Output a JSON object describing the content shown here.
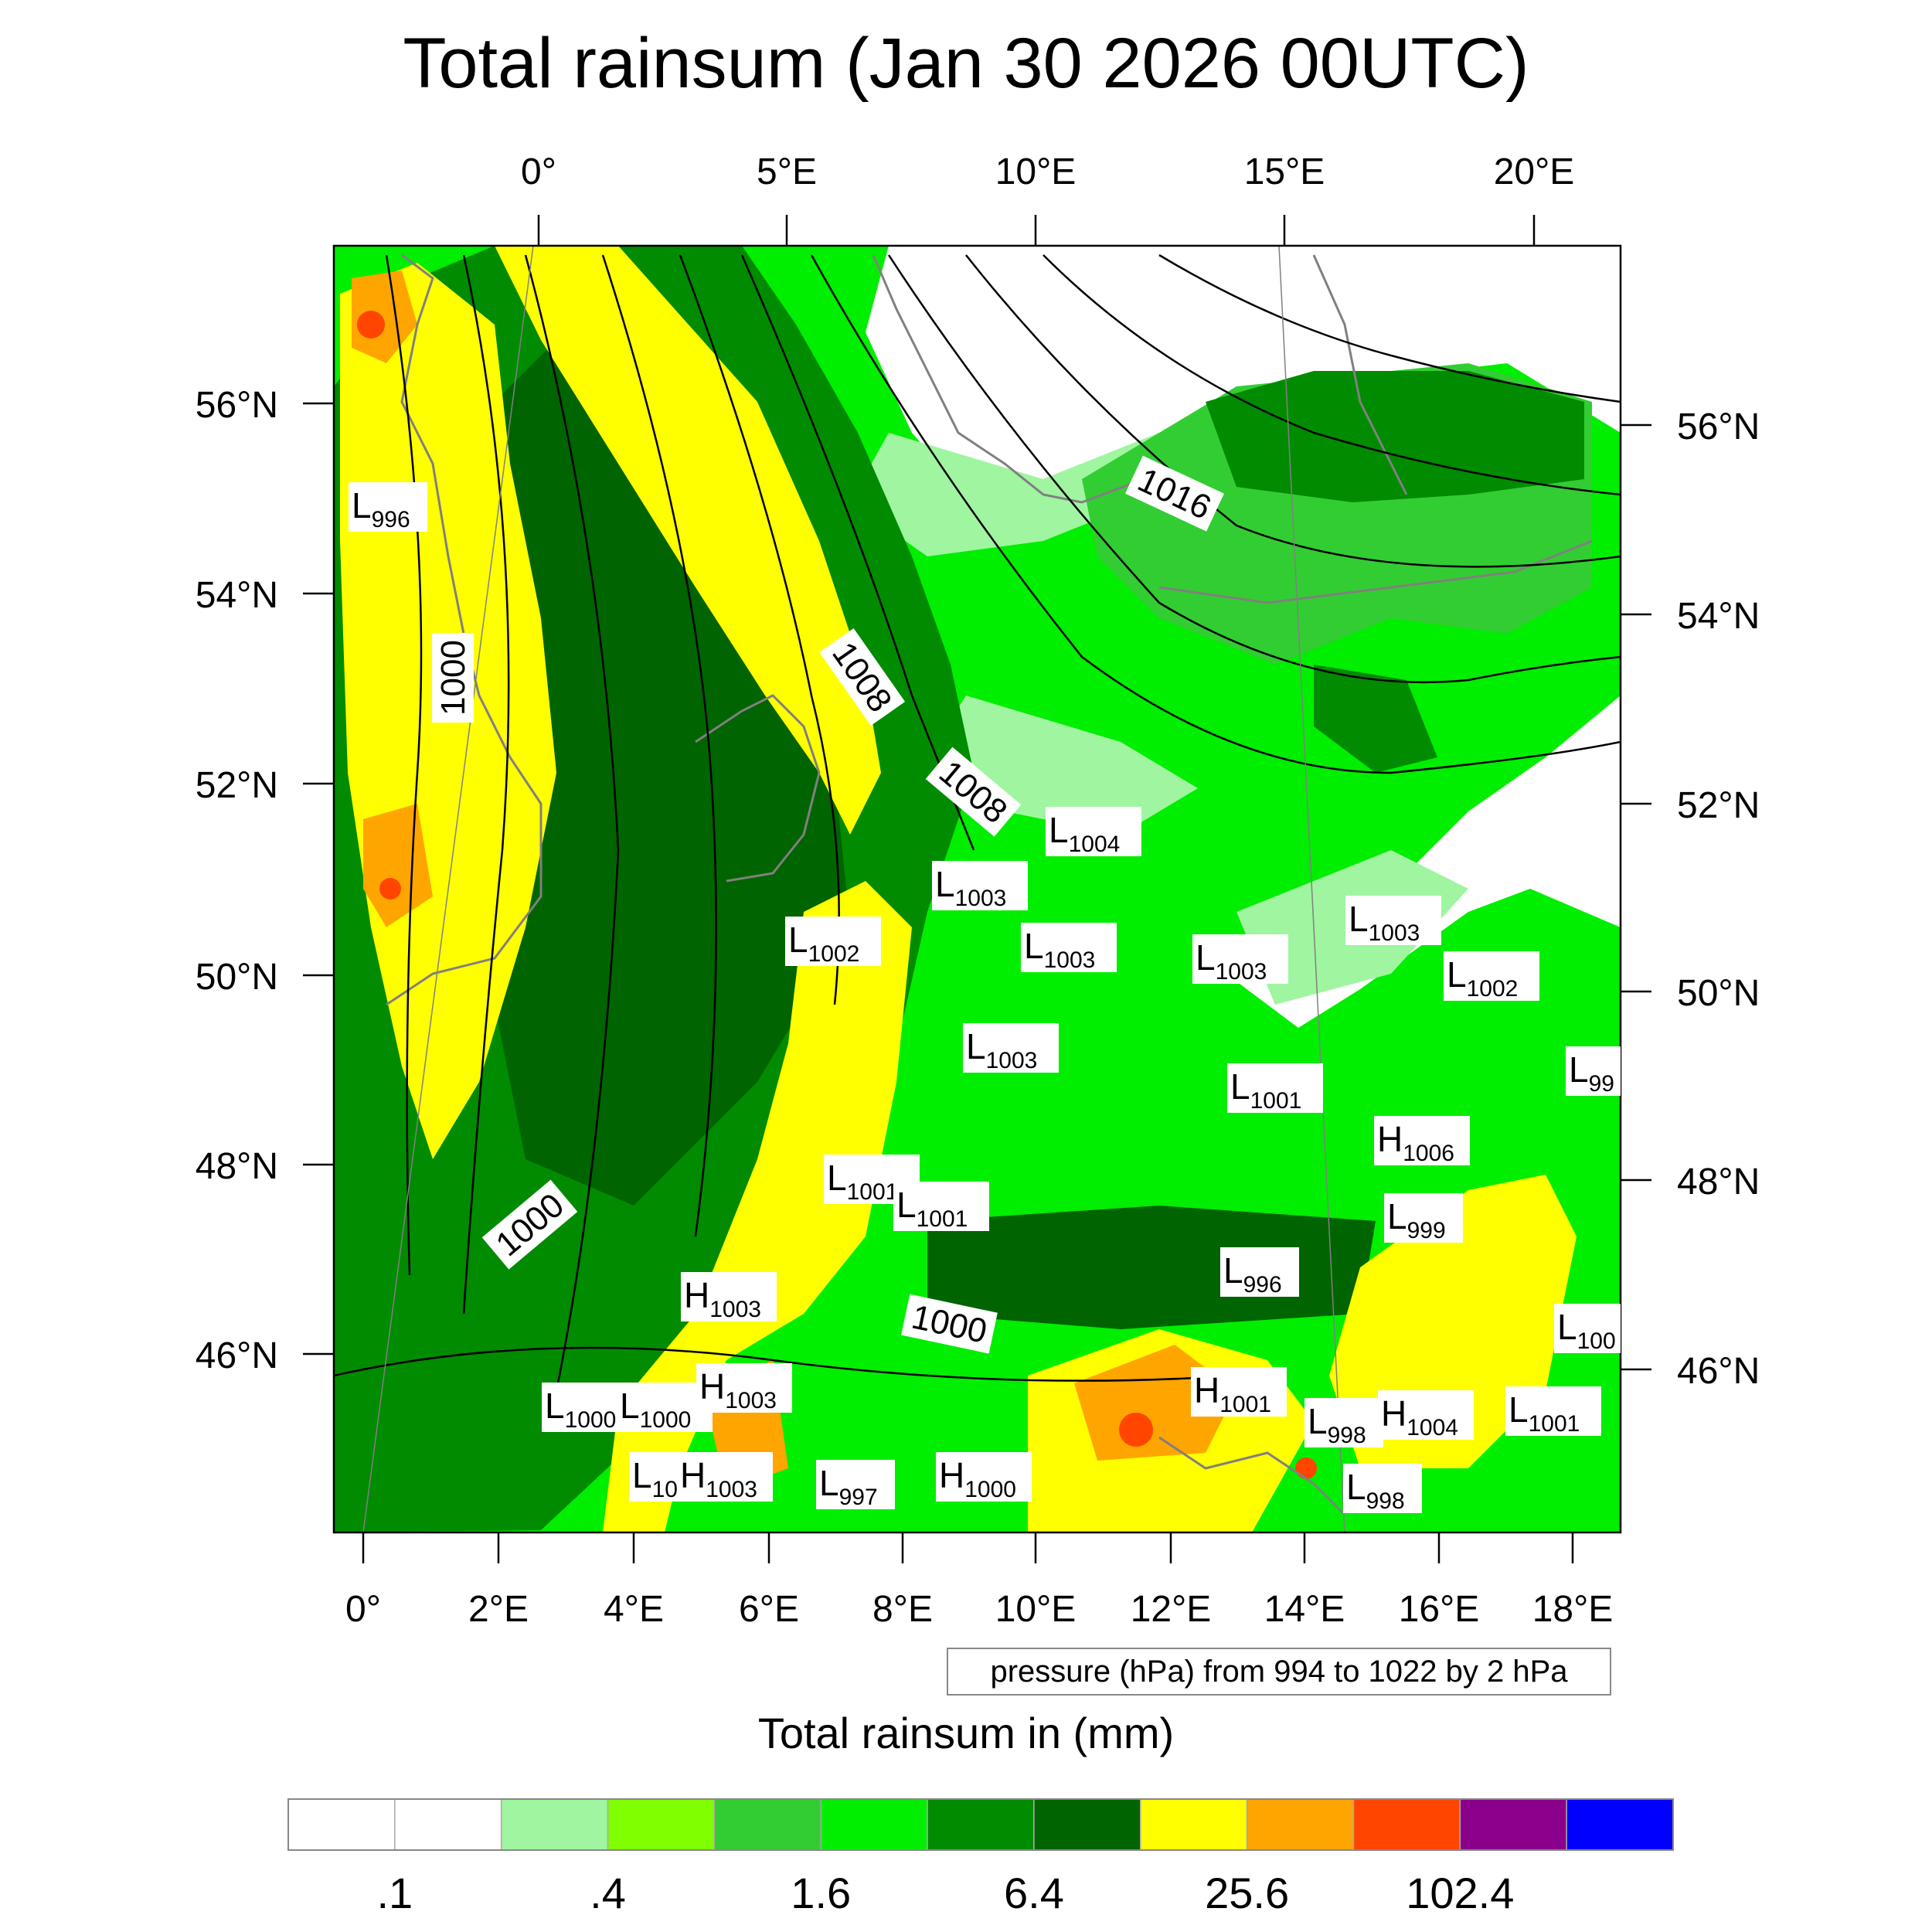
{
  "title": "Total rainsum (Jan 30 2026 00UTC)",
  "top_lon_labels": [
    "0°",
    "5°E",
    "10°E",
    "15°E",
    "20°E"
  ],
  "bottom_lon_labels": [
    "0°",
    "2°E",
    "4°E",
    "6°E",
    "8°E",
    "10°E",
    "12°E",
    "14°E",
    "16°E",
    "18°E"
  ],
  "left_lat_labels": [
    "56°N",
    "54°N",
    "52°N",
    "50°N",
    "48°N",
    "46°N"
  ],
  "right_lat_labels": [
    "56°N",
    "54°N",
    "52°N",
    "50°N",
    "48°N",
    "46°N"
  ],
  "contour_info": "pressure (hPa) from 994 to 1022 by 2 hPa",
  "colorbar": {
    "title": "Total rainsum in (mm)",
    "colors": [
      "#ffffff",
      "#ffffff",
      "#a0f5a0",
      "#80ff00",
      "#32cd32",
      "#00ee00",
      "#008b00",
      "#006400",
      "#ffff00",
      "#ffa500",
      "#ff4500",
      "#8b008b",
      "#0000ff"
    ],
    "tick_labels": [
      ".1",
      ".4",
      "1.6",
      "6.4",
      "25.6",
      "102.4"
    ]
  },
  "isobar_labels": [
    "1016",
    "1008",
    "1008",
    "1000",
    "1000",
    "1000"
  ],
  "pressure_centers": [
    {
      "type": "L",
      "value": "996"
    },
    {
      "type": "L",
      "value": "1004"
    },
    {
      "type": "L",
      "value": "1003"
    },
    {
      "type": "L",
      "value": "1002"
    },
    {
      "type": "L",
      "value": "1003"
    },
    {
      "type": "L",
      "value": "1003"
    },
    {
      "type": "L",
      "value": "1003"
    },
    {
      "type": "L",
      "value": "1002"
    },
    {
      "type": "L",
      "value": "1003"
    },
    {
      "type": "L",
      "value": "1001"
    },
    {
      "type": "L",
      "value": "99"
    },
    {
      "type": "H",
      "value": "1006"
    },
    {
      "type": "L",
      "value": "1001"
    },
    {
      "type": "L",
      "value": "1001"
    },
    {
      "type": "L",
      "value": "999"
    },
    {
      "type": "L",
      "value": "996"
    },
    {
      "type": "H",
      "value": "1003"
    },
    {
      "type": "L",
      "value": "100"
    },
    {
      "type": "H",
      "value": "1001"
    },
    {
      "type": "L",
      "value": "1000"
    },
    {
      "type": "L",
      "value": "1000"
    },
    {
      "type": "H",
      "value": "1003"
    },
    {
      "type": "L",
      "value": "998"
    },
    {
      "type": "H",
      "value": "1004"
    },
    {
      "type": "L",
      "value": "1001"
    },
    {
      "type": "L",
      "value": "10"
    },
    {
      "type": "H",
      "value": "1003"
    },
    {
      "type": "L",
      "value": "997"
    },
    {
      "type": "H",
      "value": "1000"
    },
    {
      "type": "L",
      "value": "998"
    }
  ]
}
